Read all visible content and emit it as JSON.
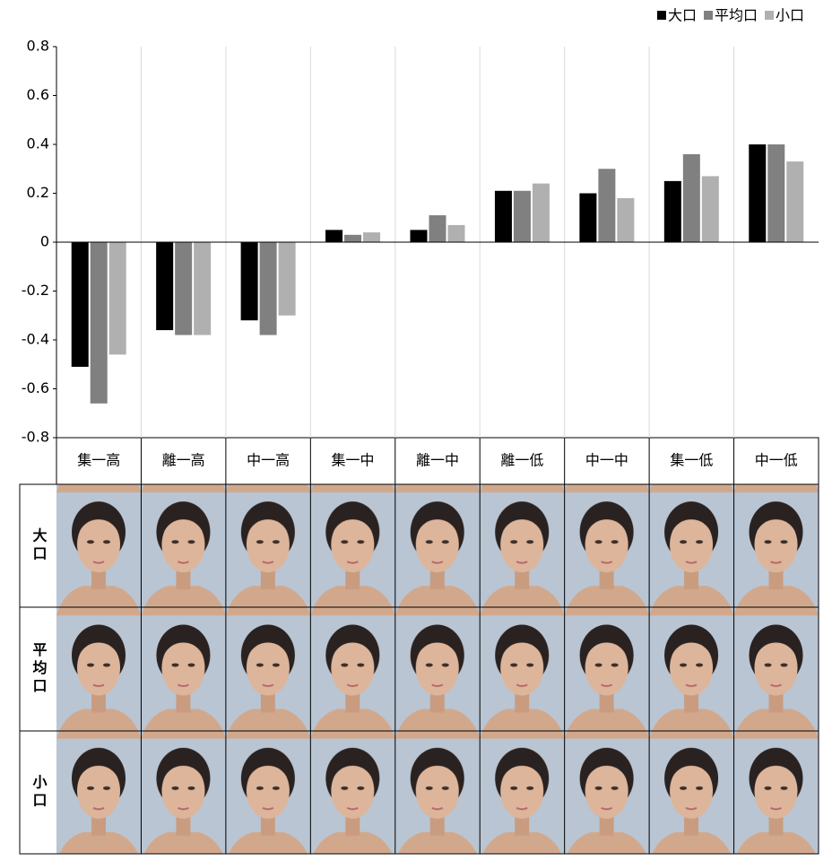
{
  "chart_data": {
    "type": "bar",
    "categories": [
      "集一高",
      "離一高",
      "中一高",
      "集一中",
      "離一中",
      "離一低",
      "中一中",
      "集一低",
      "中一低"
    ],
    "series": [
      {
        "name": "大口",
        "color": "#000000",
        "values": [
          -0.51,
          -0.36,
          -0.32,
          0.05,
          0.05,
          0.21,
          0.2,
          0.25,
          0.4
        ]
      },
      {
        "name": "平均口",
        "color": "#808080",
        "values": [
          -0.66,
          -0.38,
          -0.38,
          0.03,
          0.11,
          0.21,
          0.3,
          0.36,
          0.4
        ]
      },
      {
        "name": "小口",
        "color": "#b0b0b0",
        "values": [
          -0.46,
          -0.38,
          -0.3,
          0.04,
          0.07,
          0.24,
          0.18,
          0.27,
          0.33
        ]
      }
    ],
    "ylim": [
      -0.8,
      0.8
    ],
    "yticks": [
      0.8,
      0.6,
      0.4,
      0.2,
      0,
      -0.2,
      -0.4,
      -0.6,
      -0.8
    ],
    "legend": "top-right",
    "row_labels": [
      "大口",
      "平均口",
      "小口"
    ]
  }
}
